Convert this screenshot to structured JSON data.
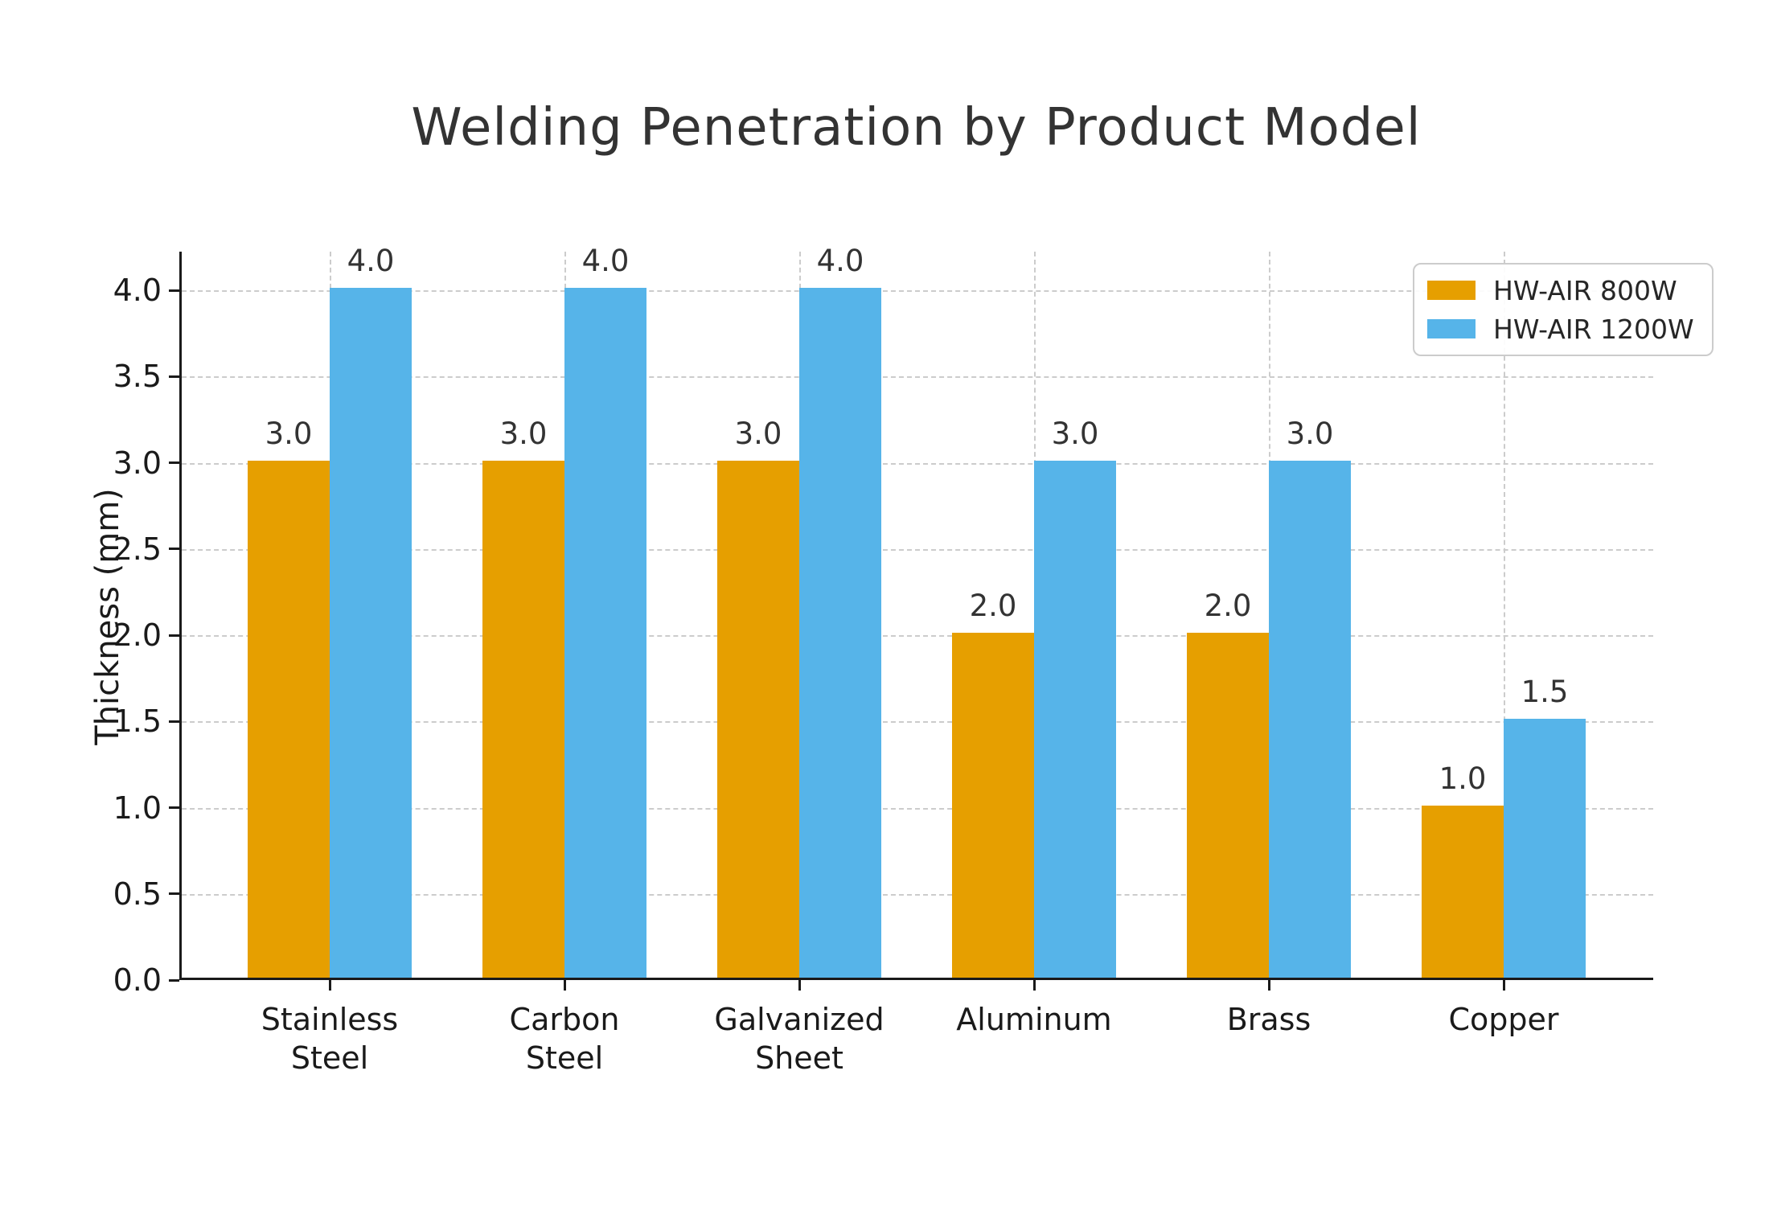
{
  "chart_data": {
    "type": "bar",
    "title": "Welding Penetration by Product Model",
    "xlabel": "",
    "ylabel": "Thickness (mm)",
    "categories": [
      "Stainless Steel",
      "Carbon Steel",
      "Galvanized Sheet",
      "Aluminum",
      "Brass",
      "Copper"
    ],
    "category_label_lines": [
      [
        "Stainless",
        "Steel"
      ],
      [
        "Carbon",
        "Steel"
      ],
      [
        "Galvanized",
        "Sheet"
      ],
      [
        "Aluminum"
      ],
      [
        "Brass"
      ],
      [
        "Copper"
      ]
    ],
    "series": [
      {
        "name": "HW-AIR 800W",
        "color": "#E69F00",
        "values": [
          3.0,
          3.0,
          3.0,
          2.0,
          2.0,
          1.0
        ],
        "value_labels": [
          "3.0",
          "3.0",
          "3.0",
          "2.0",
          "2.0",
          "1.0"
        ]
      },
      {
        "name": "HW-AIR 1200W",
        "color": "#56B4E9",
        "values": [
          4.0,
          4.0,
          4.0,
          3.0,
          3.0,
          1.5
        ],
        "value_labels": [
          "4.0",
          "4.0",
          "4.0",
          "3.0",
          "3.0",
          "1.5"
        ]
      }
    ],
    "yticks": [
      0.0,
      0.5,
      1.0,
      1.5,
      2.0,
      2.5,
      3.0,
      3.5,
      4.0
    ],
    "ytick_labels": [
      "0.0",
      "0.5",
      "1.0",
      "1.5",
      "2.0",
      "2.5",
      "3.0",
      "3.5",
      "4.0"
    ],
    "ylim": [
      0,
      4.22
    ],
    "grid": "dashed, horizontal at y-ticks and vertical at category centers",
    "legend_position": "upper-right",
    "colors": {
      "background": "#ffffff",
      "axis": "#1a1a1a",
      "grid": "#cccccc",
      "title_text": "#333333",
      "value_label_text": "#333333"
    }
  }
}
